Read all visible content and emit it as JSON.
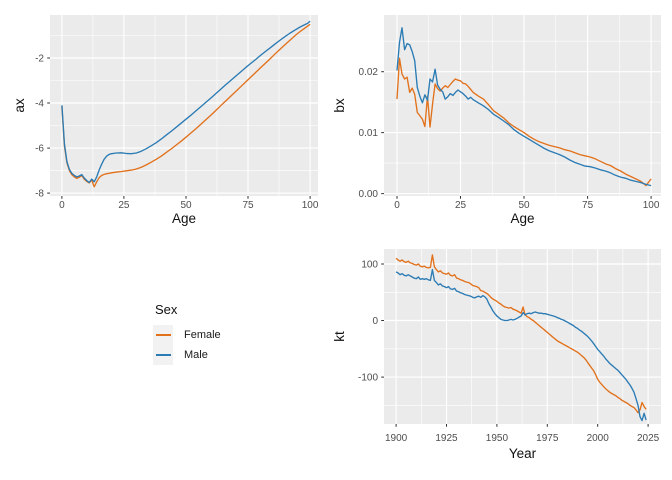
{
  "colors": {
    "female": "#E2711B",
    "male": "#2B7BB4",
    "panel_bg": "#EBEBEB",
    "grid": "#FFFFFF",
    "tick": "#333333",
    "legend_key_bg": "#F2F2F2"
  },
  "legend": {
    "title": "Sex",
    "items": [
      {
        "label": "Female",
        "color_key": "female"
      },
      {
        "label": "Male",
        "color_key": "male"
      }
    ]
  },
  "chart_data": [
    {
      "id": "ax",
      "type": "line",
      "xlabel": "Age",
      "ylabel": "ax",
      "xlim": [
        -4.8,
        103.2
      ],
      "ylim": [
        -8.13,
        -0.089
      ],
      "x_ticks": [
        {
          "v": 0,
          "label": "0"
        },
        {
          "v": 25,
          "label": "25"
        },
        {
          "v": 50,
          "label": "50"
        },
        {
          "v": 75,
          "label": "75"
        },
        {
          "v": 100,
          "label": "100"
        }
      ],
      "y_ticks": [
        {
          "v": -2,
          "label": "-2"
        },
        {
          "v": -4,
          "label": "-4"
        },
        {
          "v": -6,
          "label": "-6"
        },
        {
          "v": -8,
          "label": "-8"
        }
      ],
      "x_minor": [
        12.5,
        37.5,
        62.5,
        87.5
      ],
      "y_minor": [
        -1,
        -3,
        -5,
        -7
      ],
      "series": [
        {
          "name": "Female",
          "color_key": "female",
          "x": [
            0,
            1,
            2,
            3,
            4,
            5,
            6,
            7,
            8,
            9,
            10,
            11,
            12,
            13,
            14,
            15,
            16,
            17,
            18,
            19,
            20,
            22,
            24,
            26,
            28,
            30,
            32,
            34,
            36,
            38,
            40,
            42,
            44,
            46,
            48,
            50,
            52,
            54,
            56,
            58,
            60,
            62,
            64,
            66,
            68,
            70,
            72,
            74,
            76,
            78,
            80,
            82,
            84,
            86,
            88,
            90,
            92,
            94,
            96,
            98,
            99,
            100
          ],
          "y": [
            -4.15,
            -5.9,
            -6.65,
            -7.0,
            -7.18,
            -7.28,
            -7.35,
            -7.3,
            -7.22,
            -7.38,
            -7.48,
            -7.55,
            -7.42,
            -7.72,
            -7.5,
            -7.32,
            -7.22,
            -7.17,
            -7.14,
            -7.12,
            -7.1,
            -7.07,
            -7.04,
            -7.01,
            -6.98,
            -6.93,
            -6.85,
            -6.75,
            -6.63,
            -6.5,
            -6.36,
            -6.2,
            -6.04,
            -5.87,
            -5.7,
            -5.52,
            -5.33,
            -5.14,
            -4.94,
            -4.74,
            -4.54,
            -4.33,
            -4.12,
            -3.91,
            -3.7,
            -3.49,
            -3.28,
            -3.07,
            -2.86,
            -2.65,
            -2.44,
            -2.23,
            -2.02,
            -1.81,
            -1.6,
            -1.4,
            -1.2,
            -1.0,
            -0.82,
            -0.66,
            -0.58,
            -0.5
          ]
        },
        {
          "name": "Male",
          "color_key": "male",
          "x": [
            0,
            1,
            2,
            3,
            4,
            5,
            6,
            7,
            8,
            9,
            10,
            11,
            12,
            13,
            14,
            15,
            16,
            17,
            18,
            19,
            20,
            22,
            24,
            26,
            28,
            30,
            32,
            34,
            36,
            38,
            40,
            42,
            44,
            46,
            48,
            50,
            52,
            54,
            56,
            58,
            60,
            62,
            64,
            66,
            68,
            70,
            72,
            74,
            76,
            78,
            80,
            82,
            84,
            86,
            88,
            90,
            92,
            94,
            96,
            98,
            99,
            100
          ],
          "y": [
            -4.1,
            -5.8,
            -6.6,
            -6.95,
            -7.12,
            -7.22,
            -7.28,
            -7.24,
            -7.18,
            -7.33,
            -7.44,
            -7.53,
            -7.38,
            -7.5,
            -7.28,
            -6.98,
            -6.72,
            -6.5,
            -6.36,
            -6.28,
            -6.25,
            -6.22,
            -6.21,
            -6.24,
            -6.25,
            -6.22,
            -6.14,
            -6.03,
            -5.9,
            -5.76,
            -5.6,
            -5.43,
            -5.26,
            -5.08,
            -4.9,
            -4.72,
            -4.54,
            -4.35,
            -4.16,
            -3.97,
            -3.78,
            -3.58,
            -3.39,
            -3.19,
            -3.0,
            -2.81,
            -2.62,
            -2.43,
            -2.25,
            -2.07,
            -1.89,
            -1.71,
            -1.54,
            -1.37,
            -1.2,
            -1.04,
            -0.89,
            -0.75,
            -0.62,
            -0.51,
            -0.46,
            -0.36
          ]
        }
      ]
    },
    {
      "id": "bx",
      "type": "line",
      "xlabel": "Age",
      "ylabel": "bx",
      "xlim": [
        -5.1,
        103.9
      ],
      "ylim": [
        -0.0004,
        0.0293
      ],
      "x_ticks": [
        {
          "v": 0,
          "label": "0"
        },
        {
          "v": 25,
          "label": "25"
        },
        {
          "v": 50,
          "label": "50"
        },
        {
          "v": 75,
          "label": "75"
        },
        {
          "v": 100,
          "label": "100"
        }
      ],
      "y_ticks": [
        {
          "v": 0.0,
          "label": "0.00"
        },
        {
          "v": 0.01,
          "label": "0.01"
        },
        {
          "v": 0.02,
          "label": "0.02"
        }
      ],
      "x_minor": [
        12.5,
        37.5,
        62.5,
        87.5
      ],
      "y_minor": [
        0.005,
        0.015,
        0.025
      ],
      "series": [
        {
          "name": "Female",
          "color_key": "female",
          "x": [
            0,
            1,
            2,
            3,
            4,
            5,
            6,
            7,
            8,
            9,
            10,
            11,
            12,
            13,
            14,
            15,
            16,
            17,
            18,
            19,
            20,
            21,
            22,
            23,
            24,
            25,
            26,
            27,
            28,
            29,
            30,
            32,
            34,
            36,
            38,
            40,
            42,
            44,
            46,
            48,
            50,
            52,
            54,
            56,
            58,
            60,
            62,
            64,
            66,
            68,
            70,
            72,
            74,
            76,
            78,
            80,
            82,
            84,
            86,
            88,
            90,
            92,
            94,
            96,
            98,
            100
          ],
          "y": [
            0.0155,
            0.0222,
            0.0196,
            0.0188,
            0.0191,
            0.0166,
            0.0173,
            0.0163,
            0.0133,
            0.0128,
            0.0122,
            0.011,
            0.016,
            0.0109,
            0.0146,
            0.018,
            0.0172,
            0.0168,
            0.0173,
            0.0177,
            0.0174,
            0.0179,
            0.0184,
            0.0188,
            0.0186,
            0.0185,
            0.0181,
            0.018,
            0.0176,
            0.0171,
            0.0166,
            0.016,
            0.0155,
            0.0146,
            0.0136,
            0.013,
            0.0124,
            0.0116,
            0.011,
            0.0105,
            0.01,
            0.0094,
            0.0089,
            0.0085,
            0.0082,
            0.0079,
            0.0077,
            0.0075,
            0.0072,
            0.007,
            0.0067,
            0.0064,
            0.0062,
            0.006,
            0.0057,
            0.0053,
            0.0049,
            0.0046,
            0.0041,
            0.0037,
            0.0032,
            0.0028,
            0.0024,
            0.002,
            0.0013,
            0.0024
          ]
        },
        {
          "name": "Male",
          "color_key": "male",
          "x": [
            0,
            1,
            2,
            3,
            4,
            5,
            6,
            7,
            8,
            9,
            10,
            11,
            12,
            13,
            14,
            15,
            16,
            17,
            18,
            19,
            20,
            21,
            22,
            23,
            24,
            25,
            26,
            27,
            28,
            29,
            30,
            32,
            34,
            36,
            38,
            40,
            42,
            44,
            46,
            48,
            50,
            52,
            54,
            56,
            58,
            60,
            62,
            64,
            66,
            68,
            70,
            72,
            74,
            76,
            78,
            80,
            82,
            84,
            86,
            88,
            90,
            92,
            94,
            96,
            98,
            100
          ],
          "y": [
            0.0202,
            0.0248,
            0.0272,
            0.0236,
            0.0246,
            0.0244,
            0.0233,
            0.0218,
            0.0174,
            0.016,
            0.0149,
            0.0162,
            0.0153,
            0.0188,
            0.0183,
            0.0204,
            0.0178,
            0.0171,
            0.0167,
            0.0155,
            0.0159,
            0.0164,
            0.0161,
            0.0166,
            0.017,
            0.0167,
            0.0164,
            0.016,
            0.0155,
            0.0158,
            0.0154,
            0.0149,
            0.0144,
            0.0138,
            0.013,
            0.0125,
            0.0119,
            0.0113,
            0.0105,
            0.0099,
            0.0094,
            0.0089,
            0.0084,
            0.0079,
            0.0074,
            0.007,
            0.0067,
            0.0064,
            0.006,
            0.0055,
            0.0051,
            0.0048,
            0.0045,
            0.0044,
            0.0042,
            0.0039,
            0.0037,
            0.0034,
            0.003,
            0.0027,
            0.0025,
            0.0022,
            0.002,
            0.0018,
            0.0015,
            0.0013
          ]
        }
      ]
    },
    {
      "id": "kt",
      "type": "line",
      "xlabel": "Year",
      "ylabel": "kt",
      "xlim": [
        1894,
        2031.4
      ],
      "ylim": [
        -183,
        126.5
      ],
      "x_ticks": [
        {
          "v": 1900,
          "label": "1900"
        },
        {
          "v": 1925,
          "label": "1925"
        },
        {
          "v": 1950,
          "label": "1950"
        },
        {
          "v": 1975,
          "label": "1975"
        },
        {
          "v": 2000,
          "label": "2000"
        },
        {
          "v": 2025,
          "label": "2025"
        }
      ],
      "y_ticks": [
        {
          "v": 100,
          "label": "100"
        },
        {
          "v": 0,
          "label": "0"
        },
        {
          "v": -100,
          "label": "-100"
        }
      ],
      "x_minor": [
        1912.5,
        1937.5,
        1962.5,
        1987.5,
        2012.5
      ],
      "y_minor": [
        50,
        -50,
        -150
      ],
      "series": [
        {
          "name": "Female",
          "color_key": "female",
          "x0": 1900,
          "dx": 1,
          "y": [
            110,
            107,
            105,
            107,
            104,
            103,
            105,
            102,
            101,
            99,
            98,
            100,
            96,
            95,
            96,
            94,
            93,
            94,
            116,
            95,
            90,
            86,
            88,
            84,
            83,
            82,
            84,
            80,
            79,
            81,
            75,
            74,
            72,
            71,
            69,
            68,
            67,
            65,
            62,
            61,
            60,
            58,
            53,
            52,
            50,
            48,
            45,
            41,
            38,
            36,
            34,
            31,
            29,
            26,
            24,
            23,
            22,
            23,
            20,
            19,
            17,
            15,
            13,
            24,
            10,
            7,
            5,
            2,
            0,
            -3,
            -6,
            -9,
            -12,
            -15,
            -18,
            -21,
            -24,
            -27,
            -30,
            -33,
            -36,
            -38,
            -40,
            -42,
            -44,
            -46,
            -48,
            -50,
            -52,
            -54,
            -56,
            -59,
            -62,
            -65,
            -69,
            -74,
            -79,
            -84,
            -89,
            -96,
            -104,
            -109,
            -113,
            -117,
            -121,
            -124,
            -127,
            -129,
            -131,
            -133,
            -136,
            -138,
            -141,
            -143,
            -145,
            -147,
            -150,
            -152,
            -154,
            -158,
            -163,
            -158,
            -145,
            -152,
            -157
          ]
        },
        {
          "name": "Male",
          "color_key": "male",
          "x0": 1900,
          "dx": 1,
          "y": [
            86,
            84,
            81,
            83,
            80,
            79,
            81,
            79,
            77,
            75,
            74,
            77,
            73,
            74,
            73,
            74,
            72,
            71,
            90,
            71,
            67,
            63,
            65,
            61,
            60,
            58,
            60,
            56,
            55,
            57,
            52,
            51,
            49,
            48,
            46,
            45,
            44,
            43,
            41,
            40,
            42,
            43,
            41,
            44,
            42,
            38,
            30,
            24,
            17,
            12,
            8,
            5,
            2,
            1,
            0,
            0,
            1,
            2,
            1,
            2,
            4,
            6,
            8,
            14,
            10,
            12,
            13,
            12,
            14,
            15,
            14,
            13,
            13,
            12,
            12,
            11,
            10,
            9,
            8,
            7,
            5,
            4,
            2,
            1,
            -1,
            -3,
            -5,
            -7,
            -9,
            -12,
            -14,
            -17,
            -19,
            -22,
            -25,
            -28,
            -32,
            -36,
            -41,
            -46,
            -51,
            -55,
            -59,
            -63,
            -68,
            -72,
            -76,
            -79,
            -82,
            -85,
            -88,
            -92,
            -96,
            -100,
            -104,
            -109,
            -114,
            -120,
            -127,
            -138,
            -150,
            -170,
            -177,
            -164,
            -176
          ]
        }
      ]
    }
  ]
}
